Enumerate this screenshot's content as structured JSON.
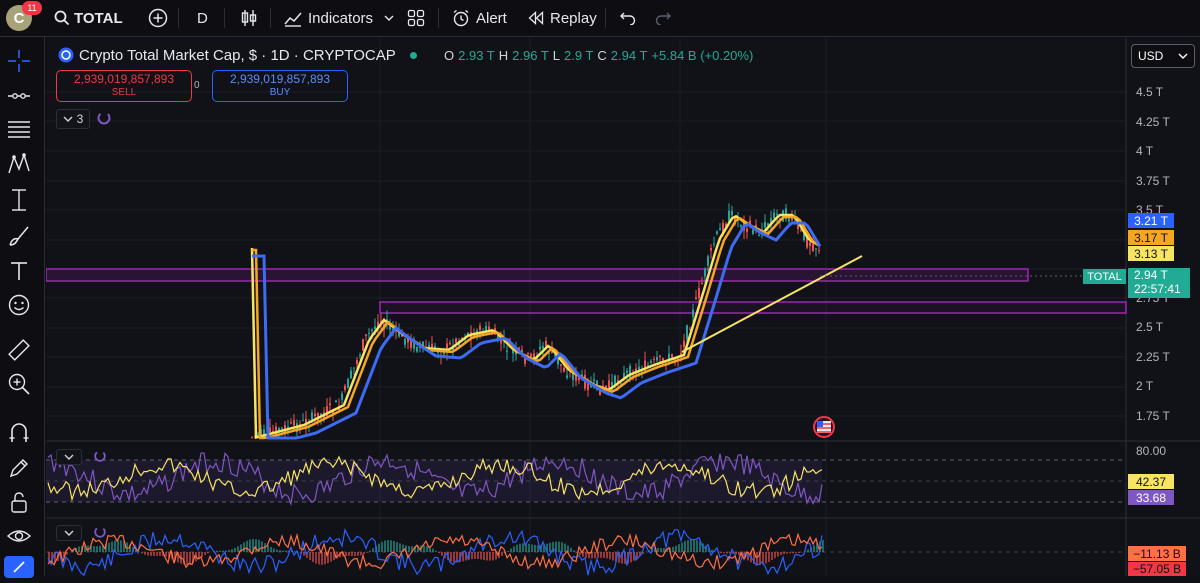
{
  "topbar": {
    "avatar_letter": "C",
    "notification_count": "11",
    "symbol": "TOTAL",
    "interval": "D",
    "indicators_label": "Indicators",
    "alert_label": "Alert",
    "replay_label": "Replay"
  },
  "legend": {
    "title": "Crypto Total Market Cap, $ · 1D · CRYPTOCAP",
    "open_label": "O",
    "open_value": "2.93 T",
    "high_label": "H",
    "high_value": "2.96 T",
    "low_label": "L",
    "low_value": "2.9 T",
    "close_label": "C",
    "close_value": "2.94 T",
    "change": "+5.84 B (+0.20%)"
  },
  "trade": {
    "sell_price": "2,939,019,857,893",
    "sell_label": "SELL",
    "spread": "0",
    "buy_price": "2,939,019,857,893",
    "buy_label": "BUY"
  },
  "indicator_count": "3",
  "currency": "USD",
  "price_axis": [
    "4.5 T",
    "4.25 T",
    "4 T",
    "3.75 T",
    "3.5 T",
    "2.75 T",
    "2.5 T",
    "2.25 T",
    "2 T",
    "1.75 T"
  ],
  "price_tags": {
    "ma1": "3.21 T",
    "ma2": "3.17 T",
    "ma3": "3.13 T",
    "symbol_tag": "TOTAL",
    "last_price": "2.94 T",
    "countdown": "22:57:41"
  },
  "rsi": {
    "upper": "80.00",
    "value1": "42.37",
    "value2": "33.68"
  },
  "macd": {
    "value1": "−11.13 B",
    "value2": "−57.05 B"
  },
  "colors": {
    "accent_blue": "#2962ff",
    "ma_blue": "#3d6bf2",
    "ma_orange": "#f5a623",
    "ma_yellow": "#f7e463",
    "zone_purple": "#9c27b0",
    "green": "#22ab94",
    "red": "#f23645"
  }
}
